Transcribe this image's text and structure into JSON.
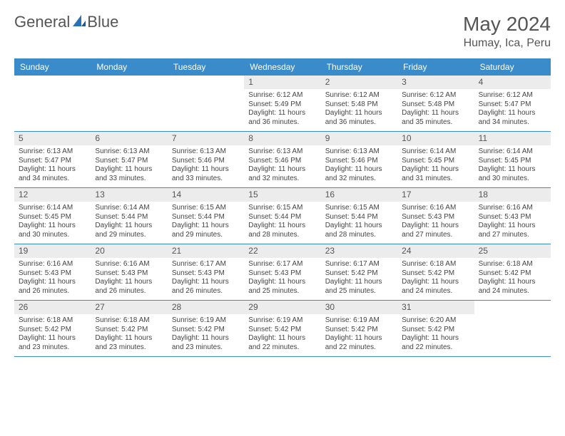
{
  "brand": {
    "name_a": "General",
    "name_b": "Blue",
    "logo_color": "#2a71b8"
  },
  "title": "May 2024",
  "subtitle": "Humay, Ica, Peru",
  "colors": {
    "header_bg": "#3a8bc9",
    "header_fg": "#ffffff",
    "datebar_bg": "#ececec",
    "rule": "#3a8bc9",
    "text": "#444444"
  },
  "day_names": [
    "Sunday",
    "Monday",
    "Tuesday",
    "Wednesday",
    "Thursday",
    "Friday",
    "Saturday"
  ],
  "weeks": [
    [
      {
        "date": "",
        "lines": []
      },
      {
        "date": "",
        "lines": []
      },
      {
        "date": "",
        "lines": []
      },
      {
        "date": "1",
        "lines": [
          "Sunrise: 6:12 AM",
          "Sunset: 5:49 PM",
          "Daylight: 11 hours and 36 minutes."
        ]
      },
      {
        "date": "2",
        "lines": [
          "Sunrise: 6:12 AM",
          "Sunset: 5:48 PM",
          "Daylight: 11 hours and 36 minutes."
        ]
      },
      {
        "date": "3",
        "lines": [
          "Sunrise: 6:12 AM",
          "Sunset: 5:48 PM",
          "Daylight: 11 hours and 35 minutes."
        ]
      },
      {
        "date": "4",
        "lines": [
          "Sunrise: 6:12 AM",
          "Sunset: 5:47 PM",
          "Daylight: 11 hours and 34 minutes."
        ]
      }
    ],
    [
      {
        "date": "5",
        "lines": [
          "Sunrise: 6:13 AM",
          "Sunset: 5:47 PM",
          "Daylight: 11 hours and 34 minutes."
        ]
      },
      {
        "date": "6",
        "lines": [
          "Sunrise: 6:13 AM",
          "Sunset: 5:47 PM",
          "Daylight: 11 hours and 33 minutes."
        ]
      },
      {
        "date": "7",
        "lines": [
          "Sunrise: 6:13 AM",
          "Sunset: 5:46 PM",
          "Daylight: 11 hours and 33 minutes."
        ]
      },
      {
        "date": "8",
        "lines": [
          "Sunrise: 6:13 AM",
          "Sunset: 5:46 PM",
          "Daylight: 11 hours and 32 minutes."
        ]
      },
      {
        "date": "9",
        "lines": [
          "Sunrise: 6:13 AM",
          "Sunset: 5:46 PM",
          "Daylight: 11 hours and 32 minutes."
        ]
      },
      {
        "date": "10",
        "lines": [
          "Sunrise: 6:14 AM",
          "Sunset: 5:45 PM",
          "Daylight: 11 hours and 31 minutes."
        ]
      },
      {
        "date": "11",
        "lines": [
          "Sunrise: 6:14 AM",
          "Sunset: 5:45 PM",
          "Daylight: 11 hours and 30 minutes."
        ]
      }
    ],
    [
      {
        "date": "12",
        "lines": [
          "Sunrise: 6:14 AM",
          "Sunset: 5:45 PM",
          "Daylight: 11 hours and 30 minutes."
        ]
      },
      {
        "date": "13",
        "lines": [
          "Sunrise: 6:14 AM",
          "Sunset: 5:44 PM",
          "Daylight: 11 hours and 29 minutes."
        ]
      },
      {
        "date": "14",
        "lines": [
          "Sunrise: 6:15 AM",
          "Sunset: 5:44 PM",
          "Daylight: 11 hours and 29 minutes."
        ]
      },
      {
        "date": "15",
        "lines": [
          "Sunrise: 6:15 AM",
          "Sunset: 5:44 PM",
          "Daylight: 11 hours and 28 minutes."
        ]
      },
      {
        "date": "16",
        "lines": [
          "Sunrise: 6:15 AM",
          "Sunset: 5:44 PM",
          "Daylight: 11 hours and 28 minutes."
        ]
      },
      {
        "date": "17",
        "lines": [
          "Sunrise: 6:16 AM",
          "Sunset: 5:43 PM",
          "Daylight: 11 hours and 27 minutes."
        ]
      },
      {
        "date": "18",
        "lines": [
          "Sunrise: 6:16 AM",
          "Sunset: 5:43 PM",
          "Daylight: 11 hours and 27 minutes."
        ]
      }
    ],
    [
      {
        "date": "19",
        "lines": [
          "Sunrise: 6:16 AM",
          "Sunset: 5:43 PM",
          "Daylight: 11 hours and 26 minutes."
        ]
      },
      {
        "date": "20",
        "lines": [
          "Sunrise: 6:16 AM",
          "Sunset: 5:43 PM",
          "Daylight: 11 hours and 26 minutes."
        ]
      },
      {
        "date": "21",
        "lines": [
          "Sunrise: 6:17 AM",
          "Sunset: 5:43 PM",
          "Daylight: 11 hours and 26 minutes."
        ]
      },
      {
        "date": "22",
        "lines": [
          "Sunrise: 6:17 AM",
          "Sunset: 5:43 PM",
          "Daylight: 11 hours and 25 minutes."
        ]
      },
      {
        "date": "23",
        "lines": [
          "Sunrise: 6:17 AM",
          "Sunset: 5:42 PM",
          "Daylight: 11 hours and 25 minutes."
        ]
      },
      {
        "date": "24",
        "lines": [
          "Sunrise: 6:18 AM",
          "Sunset: 5:42 PM",
          "Daylight: 11 hours and 24 minutes."
        ]
      },
      {
        "date": "25",
        "lines": [
          "Sunrise: 6:18 AM",
          "Sunset: 5:42 PM",
          "Daylight: 11 hours and 24 minutes."
        ]
      }
    ],
    [
      {
        "date": "26",
        "lines": [
          "Sunrise: 6:18 AM",
          "Sunset: 5:42 PM",
          "Daylight: 11 hours and 23 minutes."
        ]
      },
      {
        "date": "27",
        "lines": [
          "Sunrise: 6:18 AM",
          "Sunset: 5:42 PM",
          "Daylight: 11 hours and 23 minutes."
        ]
      },
      {
        "date": "28",
        "lines": [
          "Sunrise: 6:19 AM",
          "Sunset: 5:42 PM",
          "Daylight: 11 hours and 23 minutes."
        ]
      },
      {
        "date": "29",
        "lines": [
          "Sunrise: 6:19 AM",
          "Sunset: 5:42 PM",
          "Daylight: 11 hours and 22 minutes."
        ]
      },
      {
        "date": "30",
        "lines": [
          "Sunrise: 6:19 AM",
          "Sunset: 5:42 PM",
          "Daylight: 11 hours and 22 minutes."
        ]
      },
      {
        "date": "31",
        "lines": [
          "Sunrise: 6:20 AM",
          "Sunset: 5:42 PM",
          "Daylight: 11 hours and 22 minutes."
        ]
      },
      {
        "date": "",
        "lines": []
      }
    ]
  ]
}
